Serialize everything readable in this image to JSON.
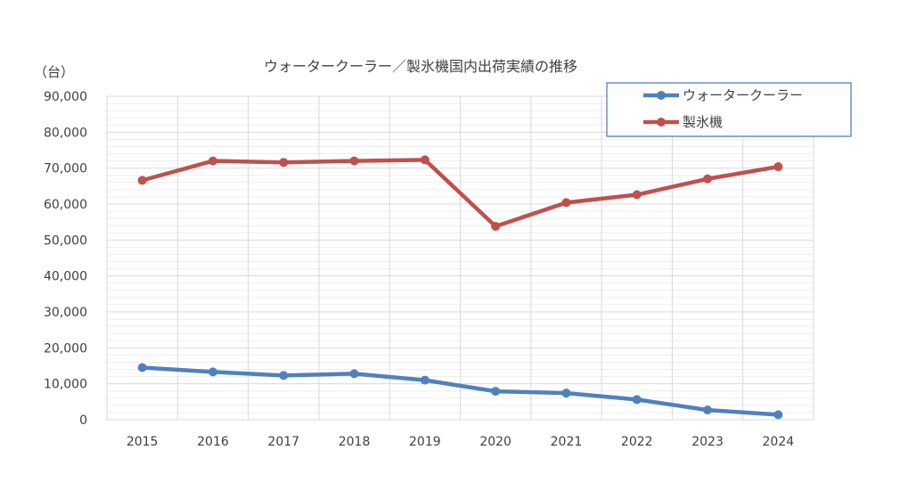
{
  "chart_data": {
    "type": "line",
    "title": "ウォータークーラー／製氷機国内出荷実績の推移",
    "unit_label": "（台）",
    "x": [
      "2015",
      "2016",
      "2017",
      "2018",
      "2019",
      "2020",
      "2021",
      "2022",
      "2023",
      "2024"
    ],
    "ylim": [
      0,
      90000
    ],
    "y_ticks": [
      "0",
      "10,000",
      "20,000",
      "30,000",
      "40,000",
      "50,000",
      "60,000",
      "70,000",
      "80,000",
      "90,000"
    ],
    "grid": true,
    "legend_position": "top-right",
    "series": [
      {
        "name": "ウォータークーラー",
        "color": "#4f81bd",
        "values": [
          14500,
          13300,
          12300,
          12800,
          11000,
          7900,
          7400,
          5600,
          2700,
          1400
        ]
      },
      {
        "name": "製氷機",
        "color": "#c0504d",
        "values": [
          66600,
          72000,
          71600,
          72000,
          72300,
          53800,
          60400,
          62600,
          67000,
          70400
        ]
      }
    ]
  }
}
